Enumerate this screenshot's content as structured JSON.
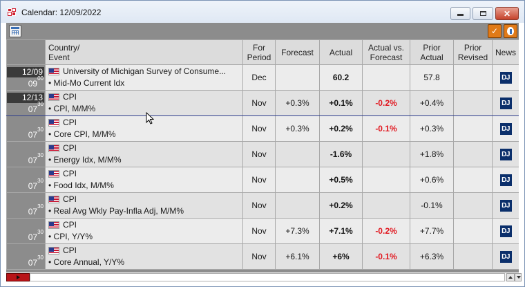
{
  "window": {
    "title": "Calendar: 12/09/2022"
  },
  "colors": {
    "negative": "#e1161e",
    "row_bg": "#ececec",
    "date_col": "#8c8c8c",
    "news_badge": "#0b2f6b",
    "toolbar_accent": "#e07a18"
  },
  "toolbar": {
    "left_icon": "calendar-icon",
    "right_icons": [
      "edit-check-icon",
      "info-shield-icon"
    ]
  },
  "columns": {
    "country_event": [
      "Country/",
      "Event"
    ],
    "for_period": [
      "For",
      "Period"
    ],
    "forecast": "Forecast",
    "actual": "Actual",
    "actual_vs_forecast": [
      "Actual vs.",
      "Forecast"
    ],
    "prior_actual": [
      "Prior",
      "Actual"
    ],
    "prior_revised": [
      "Prior",
      "Revised"
    ],
    "news": "News"
  },
  "rows": [
    {
      "date": "12/09",
      "hour": "09",
      "minute": "00",
      "country": "University of Michigan Survey of Consume...",
      "event": "• Mid-Mo Current Idx",
      "period": "Dec",
      "forecast": "",
      "actual": "60.2",
      "vs_forecast": "",
      "prior_actual": "57.8",
      "prior_revised": "",
      "news": "DJ"
    },
    {
      "date": "12/13",
      "hour": "07",
      "minute": "30",
      "country": "CPI",
      "event": "• CPI, M/M%",
      "period": "Nov",
      "forecast": "+0.3%",
      "actual": "+0.1%",
      "vs_forecast": "-0.2%",
      "prior_actual": "+0.4%",
      "prior_revised": "",
      "news": "DJ"
    },
    {
      "date": "",
      "hour": "07",
      "minute": "30",
      "country": "CPI",
      "event": "• Core CPI, M/M%",
      "period": "Nov",
      "forecast": "+0.3%",
      "actual": "+0.2%",
      "vs_forecast": "-0.1%",
      "prior_actual": "+0.3%",
      "prior_revised": "",
      "news": "DJ"
    },
    {
      "date": "",
      "hour": "07",
      "minute": "30",
      "country": "CPI",
      "event": "• Energy Idx, M/M%",
      "period": "Nov",
      "forecast": "",
      "actual": "-1.6%",
      "vs_forecast": "",
      "prior_actual": "+1.8%",
      "prior_revised": "",
      "news": "DJ"
    },
    {
      "date": "",
      "hour": "07",
      "minute": "30",
      "country": "CPI",
      "event": "• Food Idx, M/M%",
      "period": "Nov",
      "forecast": "",
      "actual": "+0.5%",
      "vs_forecast": "",
      "prior_actual": "+0.6%",
      "prior_revised": "",
      "news": "DJ"
    },
    {
      "date": "",
      "hour": "07",
      "minute": "30",
      "country": "CPI",
      "event": "• Real Avg Wkly Pay-Infla Adj, M/M%",
      "period": "Nov",
      "forecast": "",
      "actual": "+0.2%",
      "vs_forecast": "",
      "prior_actual": "-0.1%",
      "prior_revised": "",
      "news": "DJ"
    },
    {
      "date": "",
      "hour": "07",
      "minute": "30",
      "country": "CPI",
      "event": "• CPI, Y/Y%",
      "period": "Nov",
      "forecast": "+7.3%",
      "actual": "+7.1%",
      "vs_forecast": "-0.2%",
      "prior_actual": "+7.7%",
      "prior_revised": "",
      "news": "DJ"
    },
    {
      "date": "",
      "hour": "07",
      "minute": "30",
      "country": "CPI",
      "event": "• Core Annual, Y/Y%",
      "period": "Nov",
      "forecast": "+6.1%",
      "actual": "+6%",
      "vs_forecast": "-0.1%",
      "prior_actual": "+6.3%",
      "prior_revised": "",
      "news": "DJ"
    }
  ]
}
